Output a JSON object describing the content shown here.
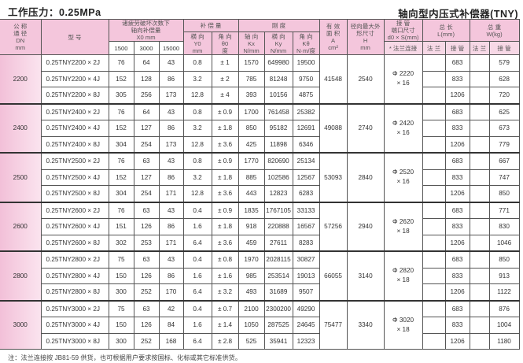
{
  "title_left": "工作压力：0.25MPa",
  "title_right": "轴向型内压式补偿器(TNY)",
  "headers": {
    "dn": [
      "公 称",
      "通 径",
      "DN",
      "mm"
    ],
    "model": "型  号",
    "fatigue": [
      "诸疲劳破坏次数下",
      "轴向补偿量",
      "X0     mm"
    ],
    "fatigue_cycles": [
      "1500",
      "3000",
      "15000"
    ],
    "compensation": "补 偿 量",
    "lateral": [
      "横 向",
      "Y0",
      "mm"
    ],
    "angular": [
      "角 向",
      "θ0",
      "度"
    ],
    "stiffness": "刚  度",
    "kx": [
      "轴 向",
      "Kx",
      "N/mm"
    ],
    "ky": [
      "横 向",
      "Ky",
      "N/mm"
    ],
    "ktheta": [
      "角 向",
      "Kθ",
      "N·m/度"
    ],
    "area": [
      "有 效",
      "面 积",
      "A",
      "cm²"
    ],
    "height": [
      "径向最大外",
      "形尺寸",
      "H",
      "mm"
    ],
    "pipe_end": [
      "接 管",
      "端口尺寸",
      "d0 × S(mm)"
    ],
    "flange_conn": "* 法兰连接",
    "length": [
      "总 长",
      "L(mm)"
    ],
    "weight": [
      "总 重",
      "W(kg)"
    ],
    "flange": "法 兰",
    "pipe": "接 管"
  },
  "groups": [
    {
      "dn": "2200",
      "area": "41548",
      "h": "2540",
      "pipe_end": "Φ 2220 × 16",
      "rows": [
        {
          "model": "0.25TNY2200 × 2J",
          "x1500": "76",
          "x3000": "64",
          "x15000": "43",
          "y": "0.8",
          "theta": "± 1",
          "kx": "1570",
          "ky": "649980",
          "kt": "19500",
          "l_pipe": "683",
          "w_pipe": "579"
        },
        {
          "model": "0.25TNY2200 × 4J",
          "x1500": "152",
          "x3000": "128",
          "x15000": "86",
          "y": "3.2",
          "theta": "± 2",
          "kx": "785",
          "ky": "81248",
          "kt": "9750",
          "l_pipe": "833",
          "w_pipe": "628"
        },
        {
          "model": "0.25TNY2200 × 8J",
          "x1500": "305",
          "x3000": "256",
          "x15000": "173",
          "y": "12.8",
          "theta": "± 4",
          "kx": "393",
          "ky": "10156",
          "kt": "4875",
          "l_pipe": "1206",
          "w_pipe": "720"
        }
      ]
    },
    {
      "dn": "2400",
      "area": "49088",
      "h": "2740",
      "pipe_end": "Φ 2420 × 16",
      "rows": [
        {
          "model": "0.25TNY2400 × 2J",
          "x1500": "76",
          "x3000": "64",
          "x15000": "43",
          "y": "0.8",
          "theta": "± 0.9",
          "kx": "1700",
          "ky": "761458",
          "kt": "25382",
          "l_pipe": "683",
          "w_pipe": "625"
        },
        {
          "model": "0.25TNY2400 × 4J",
          "x1500": "152",
          "x3000": "127",
          "x15000": "86",
          "y": "3.2",
          "theta": "± 1.8",
          "kx": "850",
          "ky": "95182",
          "kt": "12691",
          "l_pipe": "833",
          "w_pipe": "673"
        },
        {
          "model": "0.25TNY2400 × 8J",
          "x1500": "304",
          "x3000": "254",
          "x15000": "173",
          "y": "12.8",
          "theta": "± 3.6",
          "kx": "425",
          "ky": "11898",
          "kt": "6346",
          "l_pipe": "1206",
          "w_pipe": "779"
        }
      ]
    },
    {
      "dn": "2500",
      "area": "53093",
      "h": "2840",
      "pipe_end": "Φ 2520 × 16",
      "rows": [
        {
          "model": "0.25TNY2500 × 2J",
          "x1500": "76",
          "x3000": "63",
          "x15000": "43",
          "y": "0.8",
          "theta": "± 0.9",
          "kx": "1770",
          "ky": "820690",
          "kt": "25134",
          "l_pipe": "683",
          "w_pipe": "667"
        },
        {
          "model": "0.25TNY2500 × 4J",
          "x1500": "152",
          "x3000": "127",
          "x15000": "86",
          "y": "3.2",
          "theta": "± 1.8",
          "kx": "885",
          "ky": "102586",
          "kt": "12567",
          "l_pipe": "833",
          "w_pipe": "747"
        },
        {
          "model": "0.25TNY2500 × 8J",
          "x1500": "304",
          "x3000": "254",
          "x15000": "171",
          "y": "12.8",
          "theta": "± 3.6",
          "kx": "443",
          "ky": "12823",
          "kt": "6283",
          "l_pipe": "1206",
          "w_pipe": "850"
        }
      ]
    },
    {
      "dn": "2600",
      "area": "57256",
      "h": "2940",
      "pipe_end": "Φ 2620 × 18",
      "rows": [
        {
          "model": "0.25TNY2600 × 2J",
          "x1500": "76",
          "x3000": "63",
          "x15000": "43",
          "y": "0.4",
          "theta": "± 0.9",
          "kx": "1835",
          "ky": "1767105",
          "kt": "33133",
          "l_pipe": "683",
          "w_pipe": "771"
        },
        {
          "model": "0.25TNY2600 × 4J",
          "x1500": "151",
          "x3000": "126",
          "x15000": "86",
          "y": "1.6",
          "theta": "± 1.8",
          "kx": "918",
          "ky": "220888",
          "kt": "16567",
          "l_pipe": "833",
          "w_pipe": "830"
        },
        {
          "model": "0.25TNY2600 × 8J",
          "x1500": "302",
          "x3000": "253",
          "x15000": "171",
          "y": "6.4",
          "theta": "± 3.6",
          "kx": "459",
          "ky": "27611",
          "kt": "8283",
          "l_pipe": "1206",
          "w_pipe": "1046"
        }
      ]
    },
    {
      "dn": "2800",
      "area": "66055",
      "h": "3140",
      "pipe_end": "Φ 2820 × 18",
      "rows": [
        {
          "model": "0.25TNY2800 × 2J",
          "x1500": "75",
          "x3000": "63",
          "x15000": "43",
          "y": "0.4",
          "theta": "± 0.8",
          "kx": "1970",
          "ky": "2028115",
          "kt": "30827",
          "l_pipe": "683",
          "w_pipe": "850"
        },
        {
          "model": "0.25TNY2800 × 4J",
          "x1500": "150",
          "x3000": "126",
          "x15000": "86",
          "y": "1.6",
          "theta": "± 1.6",
          "kx": "985",
          "ky": "253514",
          "kt": "19013",
          "l_pipe": "833",
          "w_pipe": "913"
        },
        {
          "model": "0.25TNY2800 × 8J",
          "x1500": "300",
          "x3000": "252",
          "x15000": "170",
          "y": "6.4",
          "theta": "± 3.2",
          "kx": "493",
          "ky": "31689",
          "kt": "9507",
          "l_pipe": "1206",
          "w_pipe": "1122"
        }
      ]
    },
    {
      "dn": "3000",
      "area": "75477",
      "h": "3340",
      "pipe_end": "Φ 3020 × 18",
      "rows": [
        {
          "model": "0.25TNY3000 × 2J",
          "x1500": "75",
          "x3000": "63",
          "x15000": "42",
          "y": "0.4",
          "theta": "± 0.7",
          "kx": "2100",
          "ky": "2300200",
          "kt": "49290",
          "l_pipe": "683",
          "w_pipe": "876"
        },
        {
          "model": "0.25TNY3000 × 4J",
          "x1500": "150",
          "x3000": "126",
          "x15000": "84",
          "y": "1.6",
          "theta": "± 1.4",
          "kx": "1050",
          "ky": "287525",
          "kt": "24645",
          "l_pipe": "833",
          "w_pipe": "1004"
        },
        {
          "model": "0.25TNY3000 × 8J",
          "x1500": "300",
          "x3000": "252",
          "x15000": "168",
          "y": "6.4",
          "theta": "± 2.8",
          "kx": "525",
          "ky": "35941",
          "kt": "12323",
          "l_pipe": "1206",
          "w_pipe": "1180"
        }
      ]
    }
  ],
  "note": "注：法兰连接按 JB81-59 供货，也可根据用户要求按国标、化标或其它标准供货。"
}
